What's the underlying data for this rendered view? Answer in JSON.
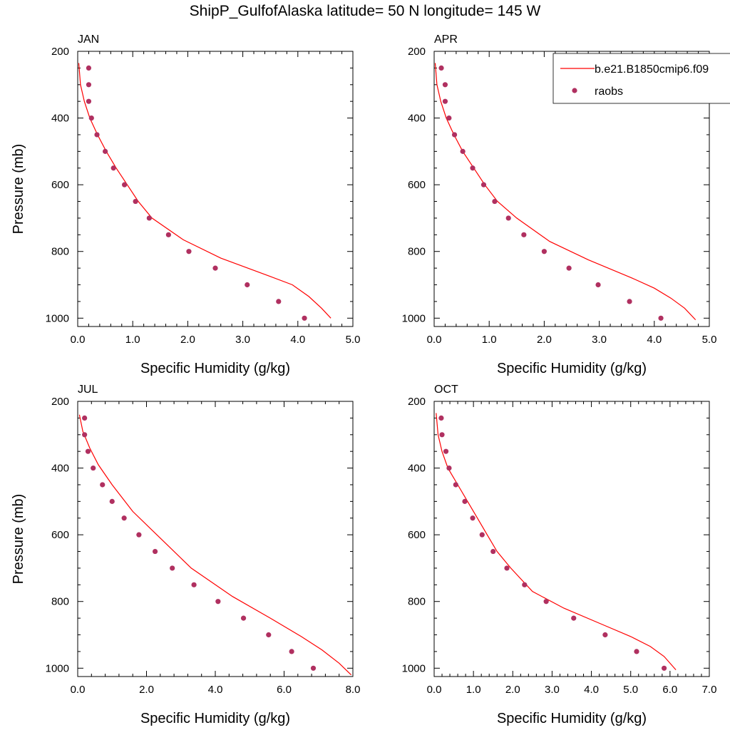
{
  "page": {
    "title": "ShipP_GulfofAlaska  latitude= 50 N longitude= 145 W"
  },
  "legend": {
    "model_label": "b.e21.B1850cmip6.f09",
    "obs_label": "raobs",
    "placement": "top-right of APR panel"
  },
  "colors": {
    "model_line": "#ff0000",
    "obs_marker": "#b03060",
    "axes": "#000000",
    "background": "#ffffff"
  },
  "chart_data": [
    {
      "type": "line",
      "panel_label": "JAN",
      "xlabel": "Specific Humidity (g/kg)",
      "ylabel": "Pressure (mb)",
      "xlim": [
        0,
        5
      ],
      "ylim": [
        1025,
        200
      ],
      "y_reversed": true,
      "xticks": [
        0,
        1,
        2,
        3,
        4,
        5
      ],
      "xtick_labels": [
        "0.0",
        "1.0",
        "2.0",
        "3.0",
        "4.0",
        "5.0"
      ],
      "yticks": [
        200,
        400,
        600,
        800,
        1000
      ],
      "ytick_labels": [
        "200",
        "400",
        "600",
        "800",
        "1000"
      ],
      "grid": false,
      "series": [
        {
          "name": "b.e21.B1850cmip6.f09",
          "kind": "line",
          "points": [
            [
              0.02,
              235
            ],
            [
              0.05,
              300
            ],
            [
              0.12,
              350
            ],
            [
              0.22,
              400
            ],
            [
              0.36,
              450
            ],
            [
              0.52,
              500
            ],
            [
              0.7,
              550
            ],
            [
              0.9,
              600
            ],
            [
              1.1,
              650
            ],
            [
              1.35,
              700
            ],
            [
              1.92,
              765
            ],
            [
              2.6,
              820
            ],
            [
              3.5,
              875
            ],
            [
              3.9,
              900
            ],
            [
              4.2,
              935
            ],
            [
              4.43,
              970
            ],
            [
              4.6,
              1000
            ]
          ]
        },
        {
          "name": "raobs",
          "kind": "scatter",
          "points": [
            [
              0.2,
              250
            ],
            [
              0.2,
              300
            ],
            [
              0.2,
              350
            ],
            [
              0.25,
              400
            ],
            [
              0.35,
              450
            ],
            [
              0.5,
              500
            ],
            [
              0.65,
              550
            ],
            [
              0.85,
              600
            ],
            [
              1.05,
              650
            ],
            [
              1.3,
              700
            ],
            [
              1.65,
              750
            ],
            [
              2.02,
              800
            ],
            [
              2.5,
              850
            ],
            [
              3.08,
              900
            ],
            [
              3.65,
              950
            ],
            [
              4.12,
              1000
            ]
          ]
        }
      ]
    },
    {
      "type": "line",
      "panel_label": "APR",
      "xlabel": "Specific Humidity (g/kg)",
      "ylabel": "",
      "xlim": [
        0,
        5
      ],
      "ylim": [
        1025,
        200
      ],
      "y_reversed": true,
      "xticks": [
        0,
        1,
        2,
        3,
        4,
        5
      ],
      "xtick_labels": [
        "0.0",
        "1.0",
        "2.0",
        "3.0",
        "4.0",
        "5.0"
      ],
      "yticks": [
        200,
        400,
        600,
        800,
        1000
      ],
      "ytick_labels": [
        "200",
        "400",
        "600",
        "800",
        "1000"
      ],
      "grid": false,
      "series": [
        {
          "name": "b.e21.B1850cmip6.f09",
          "kind": "line",
          "points": [
            [
              0.02,
              235
            ],
            [
              0.05,
              300
            ],
            [
              0.12,
              350
            ],
            [
              0.22,
              400
            ],
            [
              0.36,
              450
            ],
            [
              0.52,
              500
            ],
            [
              0.72,
              550
            ],
            [
              0.92,
              600
            ],
            [
              1.15,
              650
            ],
            [
              1.5,
              700
            ],
            [
              2.1,
              770
            ],
            [
              2.8,
              825
            ],
            [
              3.6,
              880
            ],
            [
              4.0,
              910
            ],
            [
              4.3,
              940
            ],
            [
              4.55,
              970
            ],
            [
              4.75,
              1005
            ]
          ]
        },
        {
          "name": "raobs",
          "kind": "scatter",
          "points": [
            [
              0.13,
              250
            ],
            [
              0.2,
              300
            ],
            [
              0.2,
              350
            ],
            [
              0.27,
              400
            ],
            [
              0.37,
              450
            ],
            [
              0.52,
              500
            ],
            [
              0.7,
              550
            ],
            [
              0.9,
              600
            ],
            [
              1.1,
              650
            ],
            [
              1.35,
              700
            ],
            [
              1.63,
              750
            ],
            [
              2.0,
              800
            ],
            [
              2.45,
              850
            ],
            [
              2.98,
              900
            ],
            [
              3.55,
              950
            ],
            [
              4.12,
              1000
            ]
          ]
        }
      ]
    },
    {
      "type": "line",
      "panel_label": "JUL",
      "xlabel": "Specific Humidity (g/kg)",
      "ylabel": "Pressure (mb)",
      "xlim": [
        0,
        8
      ],
      "ylim": [
        1025,
        200
      ],
      "y_reversed": true,
      "xticks": [
        0,
        2,
        4,
        6,
        8
      ],
      "xtick_labels": [
        "0.0",
        "2.0",
        "4.0",
        "6.0",
        "8.0"
      ],
      "yticks": [
        200,
        400,
        600,
        800,
        1000
      ],
      "ytick_labels": [
        "200",
        "400",
        "600",
        "800",
        "1000"
      ],
      "grid": false,
      "series": [
        {
          "name": "b.e21.B1850cmip6.f09",
          "kind": "line",
          "points": [
            [
              0.05,
              240
            ],
            [
              0.15,
              290
            ],
            [
              0.35,
              340
            ],
            [
              0.6,
              390
            ],
            [
              1.0,
              450
            ],
            [
              1.6,
              530
            ],
            [
              2.4,
              610
            ],
            [
              3.3,
              700
            ],
            [
              4.5,
              785
            ],
            [
              5.6,
              850
            ],
            [
              6.5,
              905
            ],
            [
              7.1,
              945
            ],
            [
              7.6,
              985
            ],
            [
              7.95,
              1020
            ]
          ]
        },
        {
          "name": "raobs",
          "kind": "scatter",
          "points": [
            [
              0.2,
              250
            ],
            [
              0.2,
              300
            ],
            [
              0.3,
              350
            ],
            [
              0.45,
              400
            ],
            [
              0.72,
              450
            ],
            [
              1.0,
              500
            ],
            [
              1.35,
              550
            ],
            [
              1.78,
              600
            ],
            [
              2.25,
              650
            ],
            [
              2.75,
              700
            ],
            [
              3.38,
              750
            ],
            [
              4.08,
              800
            ],
            [
              4.82,
              850
            ],
            [
              5.55,
              900
            ],
            [
              6.22,
              950
            ],
            [
              6.85,
              1000
            ]
          ]
        }
      ]
    },
    {
      "type": "line",
      "panel_label": "OCT",
      "xlabel": "Specific Humidity (g/kg)",
      "ylabel": "",
      "xlim": [
        0,
        7
      ],
      "ylim": [
        1025,
        200
      ],
      "y_reversed": true,
      "xticks": [
        0,
        1,
        2,
        3,
        4,
        5,
        6,
        7
      ],
      "xtick_labels": [
        "0.0",
        "1.0",
        "2.0",
        "3.0",
        "4.0",
        "5.0",
        "6.0",
        "7.0"
      ],
      "yticks": [
        200,
        400,
        600,
        800,
        1000
      ],
      "ytick_labels": [
        "200",
        "400",
        "600",
        "800",
        "1000"
      ],
      "grid": false,
      "series": [
        {
          "name": "b.e21.B1850cmip6.f09",
          "kind": "line",
          "points": [
            [
              0.05,
              235
            ],
            [
              0.1,
              300
            ],
            [
              0.2,
              350
            ],
            [
              0.35,
              400
            ],
            [
              0.6,
              450
            ],
            [
              0.85,
              500
            ],
            [
              1.1,
              550
            ],
            [
              1.35,
              600
            ],
            [
              1.6,
              650
            ],
            [
              1.95,
              700
            ],
            [
              2.5,
              770
            ],
            [
              3.3,
              820
            ],
            [
              4.3,
              870
            ],
            [
              5.0,
              905
            ],
            [
              5.5,
              935
            ],
            [
              5.85,
              965
            ],
            [
              6.15,
              1005
            ]
          ]
        },
        {
          "name": "raobs",
          "kind": "scatter",
          "points": [
            [
              0.18,
              250
            ],
            [
              0.2,
              300
            ],
            [
              0.3,
              350
            ],
            [
              0.38,
              400
            ],
            [
              0.55,
              450
            ],
            [
              0.78,
              500
            ],
            [
              0.98,
              550
            ],
            [
              1.22,
              600
            ],
            [
              1.5,
              650
            ],
            [
              1.85,
              700
            ],
            [
              2.3,
              750
            ],
            [
              2.85,
              800
            ],
            [
              3.55,
              850
            ],
            [
              4.35,
              900
            ],
            [
              5.15,
              950
            ],
            [
              5.85,
              1000
            ]
          ]
        }
      ]
    }
  ]
}
